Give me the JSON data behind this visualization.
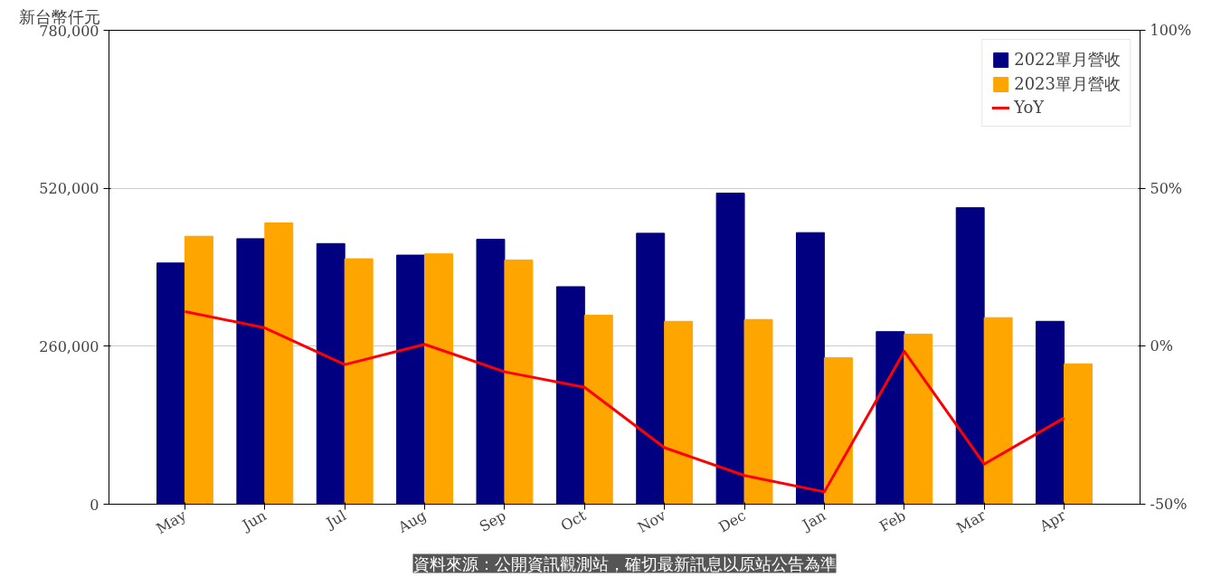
{
  "chart_data": {
    "type": "bar",
    "ylabel": "新台幣仟元",
    "categories": [
      "May",
      "Jun",
      "Jul",
      "Aug",
      "Sep",
      "Oct",
      "Nov",
      "Dec",
      "Jan",
      "Feb",
      "Mar",
      "Apr"
    ],
    "series": [
      {
        "name": "2022單月營收",
        "color": "#000080",
        "values": [
          397000,
          437000,
          429000,
          410000,
          436000,
          358000,
          446000,
          512000,
          447000,
          284000,
          488000,
          301000
        ]
      },
      {
        "name": "2023單月營收",
        "color": "#ffa500",
        "values": [
          441000,
          463000,
          404000,
          412000,
          402000,
          311000,
          301000,
          304000,
          241000,
          280000,
          307000,
          231000
        ]
      },
      {
        "name": "YoY",
        "type": "line",
        "axis": "y2",
        "color": "#ff0000",
        "values": [
          11.0,
          5.8,
          -5.8,
          0.6,
          -8.1,
          -13.0,
          -32.1,
          -40.9,
          -46.1,
          -1.6,
          -37.3,
          -22.7
        ]
      }
    ],
    "ylim": [
      0,
      780000
    ],
    "yticks": [
      0,
      {
        "value": 260000,
        "label": "260,000"
      },
      {
        "value": 520000,
        "label": "520,000"
      },
      {
        "value": 780000,
        "label": "780,000"
      }
    ],
    "y2lim": [
      -50,
      100
    ],
    "y2ticks": [
      {
        "value": -50,
        "label": "-50%"
      },
      {
        "value": 0,
        "label": "0%"
      },
      {
        "value": 50,
        "label": "50%"
      },
      {
        "value": 100,
        "label": "100%"
      }
    ],
    "grid": "y",
    "legend": "top right",
    "annotations": [
      "資料來源：公開資訊觀測站，確切最新訊息以原站公告為準"
    ]
  }
}
